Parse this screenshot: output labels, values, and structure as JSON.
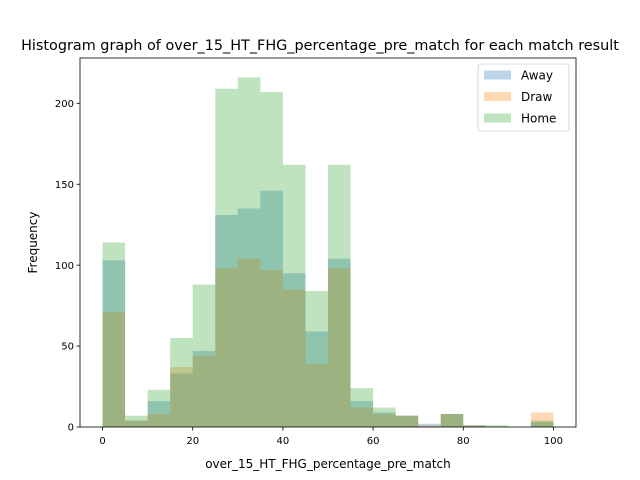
{
  "chart_data": {
    "type": "bar",
    "title": "Histogram graph of over_15_HT_FHG_percentage_pre_match for each match result",
    "xlabel": "over_15_HT_FHG_percentage_pre_match",
    "ylabel": "Frequency",
    "xlim": [
      -5,
      105
    ],
    "ylim": [
      0,
      228
    ],
    "xticks": [
      0,
      20,
      40,
      60,
      80,
      100
    ],
    "yticks": [
      0,
      50,
      100,
      150,
      200
    ],
    "bin_width": 5,
    "bin_starts": [
      0,
      5,
      10,
      15,
      20,
      25,
      30,
      35,
      40,
      45,
      50,
      55,
      60,
      65,
      70,
      75,
      80,
      85,
      90,
      95
    ],
    "legend_position": "top-right",
    "grid": false,
    "series": [
      {
        "name": "Away",
        "color": "#1f77b4",
        "opacity": 0.3,
        "values": [
          103,
          4,
          16,
          33,
          47,
          131,
          135,
          146,
          95,
          59,
          104,
          16,
          9,
          7,
          2,
          8,
          1,
          0,
          0,
          3
        ]
      },
      {
        "name": "Draw",
        "color": "#ff7f0e",
        "opacity": 0.3,
        "values": [
          71,
          4,
          8,
          37,
          44,
          98,
          104,
          97,
          85,
          39,
          98,
          12,
          8,
          7,
          1,
          8,
          1,
          0,
          0,
          9
        ]
      },
      {
        "name": "Home",
        "color": "#2ca02c",
        "opacity": 0.3,
        "values": [
          114,
          7,
          23,
          55,
          88,
          209,
          216,
          207,
          162,
          84,
          162,
          24,
          12,
          7,
          0,
          8,
          1,
          1,
          0,
          4
        ]
      }
    ]
  }
}
